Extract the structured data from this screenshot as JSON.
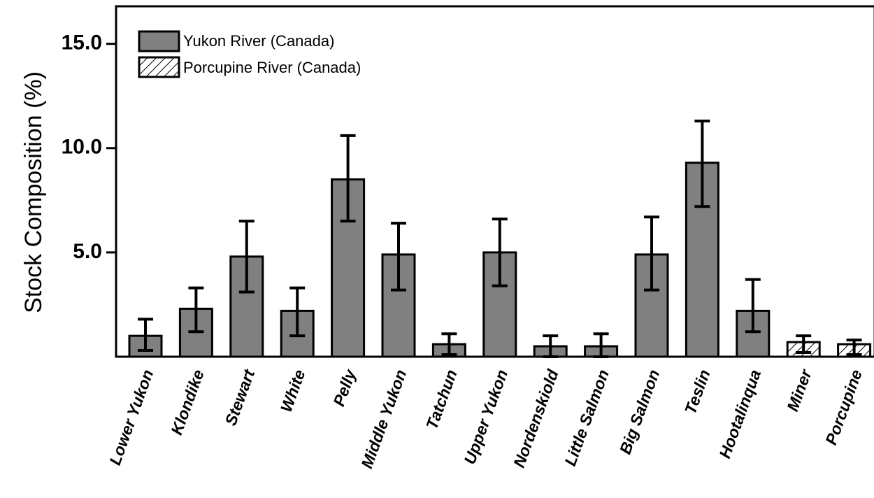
{
  "chart_data": {
    "type": "bar",
    "ylabel": "Stock Composition (%)",
    "xlabel": "",
    "ylim": [
      0,
      16.8
    ],
    "yticks": [
      5.0,
      10.0,
      15.0
    ],
    "ytick_labels": [
      "5.0",
      "10.0",
      "15.0"
    ],
    "grid": false,
    "legend_position": "top-left",
    "categories": [
      "Lower Yukon",
      "Klondike",
      "Stewart",
      "White",
      "Pelly",
      "Middle Yukon",
      "Tatchun",
      "Upper Yukon",
      "Nordenskiold",
      "Little Salmon",
      "Big Salmon",
      "Teslin",
      "Hootalinqua",
      "Miner",
      "Porcupine"
    ],
    "values": [
      1.0,
      2.3,
      4.8,
      2.2,
      8.5,
      4.9,
      0.6,
      5.0,
      0.5,
      0.5,
      4.9,
      9.3,
      2.2,
      0.7,
      0.6
    ],
    "error_low": [
      0.3,
      1.2,
      3.1,
      1.0,
      6.5,
      3.2,
      0.1,
      3.4,
      0.0,
      0.0,
      3.2,
      7.2,
      1.2,
      0.2,
      0.1
    ],
    "error_high": [
      1.8,
      3.3,
      6.5,
      3.3,
      10.6,
      6.4,
      1.1,
      6.6,
      1.0,
      1.1,
      6.7,
      11.3,
      3.7,
      1.0,
      0.8
    ],
    "series_type": [
      "yukon",
      "yukon",
      "yukon",
      "yukon",
      "yukon",
      "yukon",
      "yukon",
      "yukon",
      "yukon",
      "yukon",
      "yukon",
      "yukon",
      "yukon",
      "porcupine",
      "porcupine"
    ],
    "legend": [
      {
        "key": "yukon",
        "label": "Yukon River (Canada)",
        "fill": "#808080",
        "hatched": false
      },
      {
        "key": "porcupine",
        "label": "Porcupine River (Canada)",
        "fill": "#ffffff",
        "hatched": true
      }
    ]
  }
}
